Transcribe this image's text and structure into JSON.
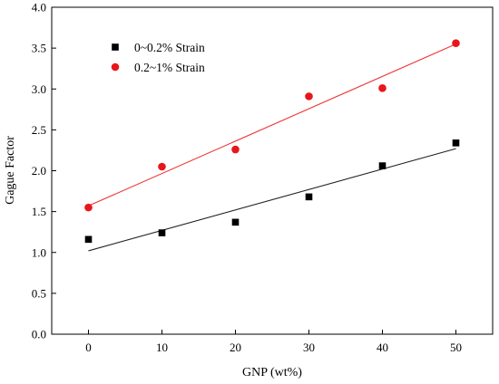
{
  "chart_data": {
    "type": "scatter",
    "title": "",
    "xlabel": "GNP (wt%)",
    "ylabel": "Gague Factor",
    "xlim": [
      -5,
      55
    ],
    "ylim": [
      0,
      4
    ],
    "xticks": [
      0,
      10,
      20,
      30,
      40,
      50
    ],
    "yticks": [
      0.0,
      0.5,
      1.0,
      1.5,
      2.0,
      2.5,
      3.0,
      3.5,
      4.0
    ],
    "xtick_labels": [
      "0",
      "10",
      "20",
      "30",
      "40",
      "50"
    ],
    "ytick_labels": [
      "0.0",
      "0.5",
      "1.0",
      "1.5",
      "2.0",
      "2.5",
      "3.0",
      "3.5",
      "4.0"
    ],
    "grid": false,
    "legend_position": "top-left",
    "series": [
      {
        "name": "0~0.2% Strain",
        "marker": "square",
        "color": "#000000",
        "fit_color": "#222222",
        "x": [
          0,
          10,
          20,
          30,
          40,
          50
        ],
        "y": [
          1.16,
          1.24,
          1.37,
          1.68,
          2.06,
          2.34
        ],
        "fit": {
          "x": [
            0,
            50
          ],
          "y": [
            1.02,
            2.27
          ]
        }
      },
      {
        "name": "0.2~1% Strain",
        "marker": "circle",
        "color": "#e8161b",
        "fit_color": "#ee3333",
        "x": [
          0,
          10,
          20,
          30,
          40,
          50
        ],
        "y": [
          1.55,
          2.05,
          2.26,
          2.91,
          3.01,
          3.56
        ],
        "fit": {
          "x": [
            0,
            50
          ],
          "y": [
            1.57,
            3.55
          ]
        }
      }
    ]
  }
}
